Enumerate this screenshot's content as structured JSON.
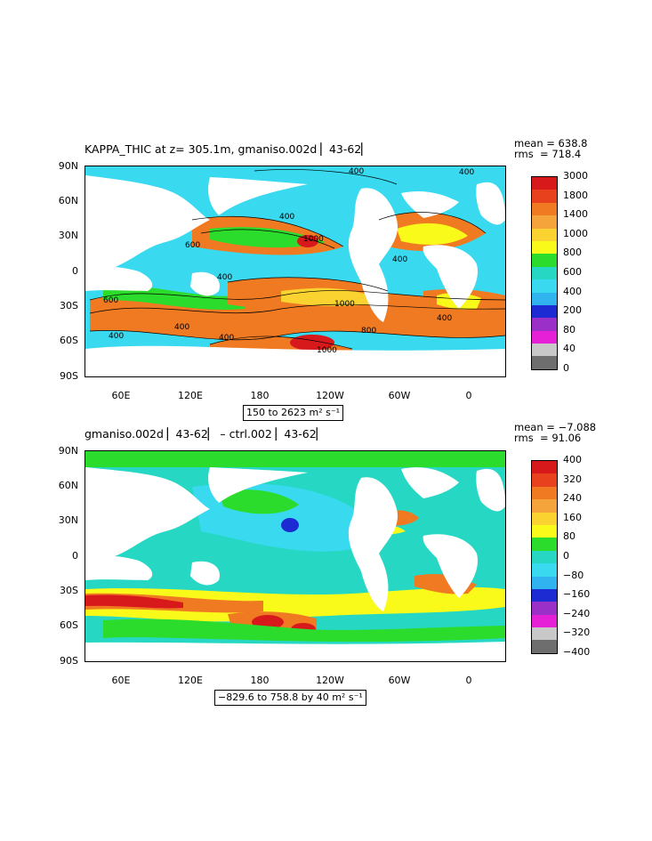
{
  "panel1": {
    "title": "KAPPA_THIC at z= 305.1m, gmaniso.002d ▏43-62▏",
    "stats": {
      "mean": "mean = 638.8",
      "rms": "rms  = 718.4"
    },
    "range_label": "150 to 2623 m² s⁻¹",
    "colorbar": {
      "labels": [
        "3000",
        "1800",
        "1400",
        "1000",
        "800",
        "600",
        "400",
        "200",
        "80",
        "40",
        "0"
      ],
      "colors": [
        "#d7191c",
        "#e8411d",
        "#f07a22",
        "#f4a43a",
        "#fbd330",
        "#f9f91a",
        "#2cdc2c",
        "#26d8c4",
        "#39d9f0",
        "#30b3ee",
        "#1c2bd2",
        "#9b30c8",
        "#e620d6",
        "#c8c8c8",
        "#6e6e6e"
      ]
    },
    "contour_labels": [
      "400",
      "1000",
      "600",
      "400",
      "400",
      "400",
      "1000",
      "400",
      "400",
      "400",
      "800",
      "1000",
      "400",
      "400",
      "600"
    ]
  },
  "panel2": {
    "title": "gmaniso.002d ▏43-62▏ – ctrl.002 ▏43-62▏",
    "stats": {
      "mean": "mean = −7.088",
      "rms": "rms  = 91.06"
    },
    "range_label": "−829.6 to 758.8 by 40 m² s⁻¹",
    "colorbar": {
      "labels": [
        "400",
        "320",
        "240",
        "160",
        "80",
        "0",
        "−80",
        "−160",
        "−240",
        "−320",
        "−400"
      ],
      "colors": [
        "#d7191c",
        "#e8411d",
        "#f07a22",
        "#f4a43a",
        "#fbd330",
        "#f9f91a",
        "#2cdc2c",
        "#26d8c4",
        "#39d9f0",
        "#30b3ee",
        "#1c2bd2",
        "#9b30c8",
        "#e620d6",
        "#c8c8c8",
        "#6e6e6e"
      ]
    }
  },
  "axes": {
    "lat_labels": [
      "90N",
      "60N",
      "30N",
      "0",
      "30S",
      "60S",
      "90S"
    ],
    "lon_labels": [
      "60E",
      "120E",
      "180",
      "120W",
      "60W",
      "0"
    ]
  }
}
